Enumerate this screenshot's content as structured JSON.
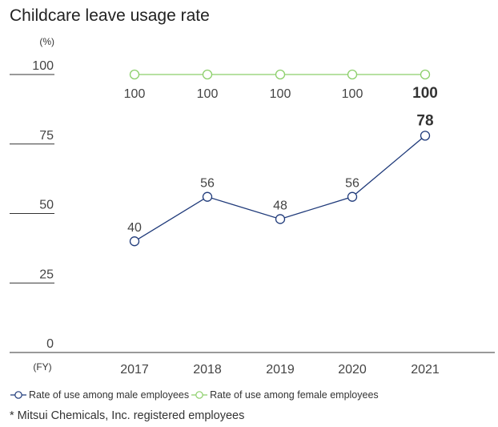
{
  "chart_data": {
    "type": "line",
    "title": "Childcare leave usage rate",
    "ylabel": "(%)",
    "xlabel": "(FY)",
    "ylim": [
      0,
      100
    ],
    "yticks": [
      "0",
      "25",
      "50",
      "75",
      "100"
    ],
    "categories": [
      "2017",
      "2018",
      "2019",
      "2020",
      "2021"
    ],
    "series": [
      {
        "name": "Rate of use among male employees",
        "color": "#1f3a7a",
        "values": [
          40,
          56,
          48,
          56,
          78
        ],
        "labels": [
          "40",
          "56",
          "48",
          "56",
          "78"
        ]
      },
      {
        "name": "Rate of use among female employees",
        "color": "#8ccf6a",
        "values": [
          100,
          100,
          100,
          100,
          100
        ],
        "labels": [
          "100",
          "100",
          "100",
          "100",
          "100"
        ]
      }
    ],
    "legend_position": "bottom",
    "grid": false
  },
  "footnote": "* Mitsui Chemicals, Inc. registered employees"
}
